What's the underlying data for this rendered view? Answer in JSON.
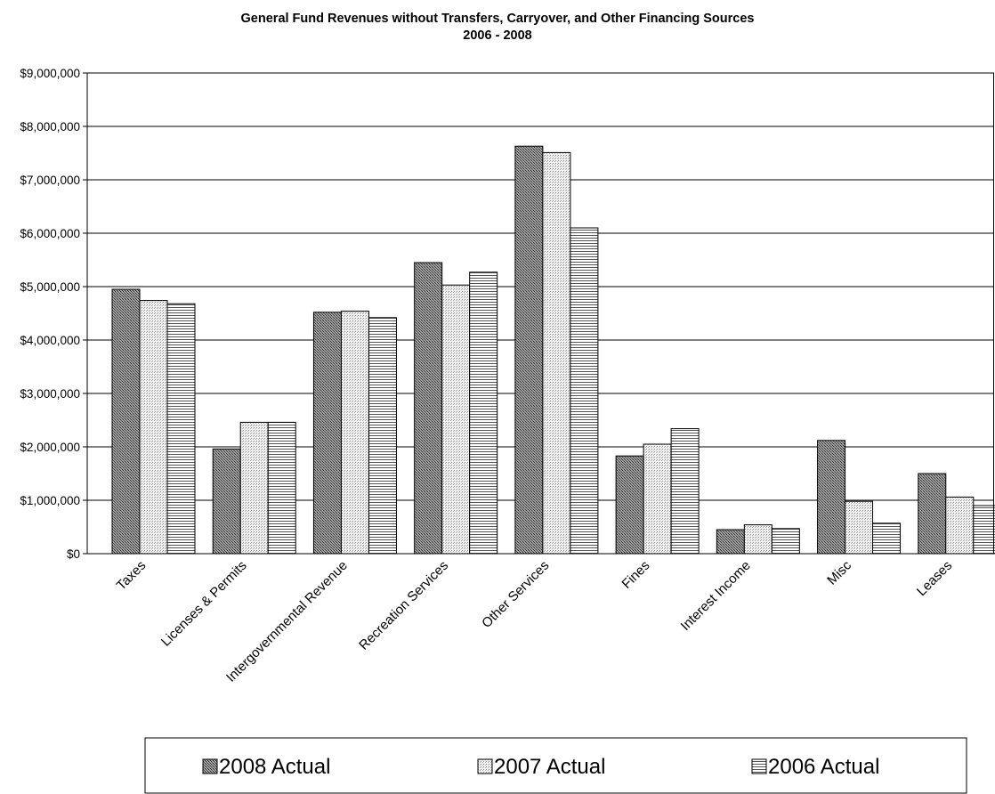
{
  "chart_data": {
    "type": "bar",
    "title": "General Fund Revenues without Transfers, Carryover, and Other Financing Sources",
    "subtitle": "2006 - 2008",
    "xlabel": "",
    "ylabel": "",
    "ylim": [
      0,
      9000000
    ],
    "yticks": [
      0,
      1000000,
      2000000,
      3000000,
      4000000,
      5000000,
      6000000,
      7000000,
      8000000,
      9000000
    ],
    "ytick_labels": [
      "$0",
      "$1,000,000",
      "$2,000,000",
      "$3,000,000",
      "$4,000,000",
      "$5,000,000",
      "$6,000,000",
      "$7,000,000",
      "$8,000,000",
      "$9,000,000"
    ],
    "grid": true,
    "legend_position": "bottom",
    "categories": [
      "Taxes",
      "Licenses & Permits",
      "Intergovernmental Revenue",
      "Recreation Services",
      "Other Services",
      "Fines",
      "Interest Income",
      "Misc",
      "Leases"
    ],
    "series": [
      {
        "name": "2008 Actual",
        "pattern": "dense-crosshatch",
        "values": [
          4950000,
          1960000,
          4520000,
          5450000,
          7630000,
          1830000,
          450000,
          2120000,
          1500000
        ]
      },
      {
        "name": "2007 Actual",
        "pattern": "fine-dots",
        "values": [
          4740000,
          2460000,
          4540000,
          5030000,
          7510000,
          2050000,
          540000,
          980000,
          1060000
        ]
      },
      {
        "name": "2006 Actual",
        "pattern": "horizontal-stripes",
        "values": [
          4680000,
          2460000,
          4420000,
          5270000,
          6100000,
          2340000,
          470000,
          570000,
          900000
        ]
      }
    ]
  }
}
